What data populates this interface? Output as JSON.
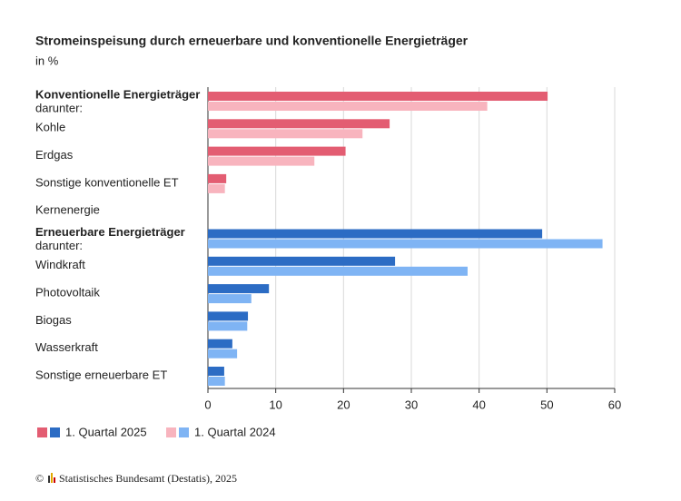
{
  "chart_data": {
    "type": "hbar",
    "title": "Stromeinspeisung durch erneuerbare und konventionelle Energieträger",
    "subtitle": "in %",
    "categories": [
      "Konventionelle Energieträger",
      "Kohle",
      "Erdgas",
      "Sonstige konventionelle ET",
      "Kernenergie",
      "Erneuerbare Energieträger",
      "Windkraft",
      "Photovoltaik",
      "Biogas",
      "Wasserkraft",
      "Sonstige erneuerbare ET"
    ],
    "category_notes": [
      "darunter:",
      null,
      null,
      null,
      null,
      "darunter:",
      null,
      null,
      null,
      null,
      null
    ],
    "category_bold": [
      true,
      false,
      false,
      false,
      false,
      true,
      false,
      false,
      false,
      false,
      false
    ],
    "category_palette": [
      0,
      0,
      0,
      0,
      0,
      1,
      1,
      1,
      1,
      1,
      1
    ],
    "series": [
      {
        "name": "1. Quartal 2025",
        "colors": [
          "#e35d72",
          "#2c6cc4"
        ],
        "values": [
          50.1,
          26.8,
          20.3,
          2.7,
          0,
          49.3,
          27.6,
          9.0,
          5.9,
          3.6,
          2.4
        ]
      },
      {
        "name": "1. Quartal 2024",
        "colors": [
          "#f8b4be",
          "#7fb4f4"
        ],
        "values": [
          41.2,
          22.8,
          15.7,
          2.5,
          0,
          58.2,
          38.3,
          6.4,
          5.8,
          4.3,
          2.5
        ]
      }
    ],
    "xlim": [
      0,
      60
    ],
    "xticks": [
      0,
      10,
      20,
      30,
      40,
      50,
      60
    ],
    "grid": true,
    "source": "Statistisches Bundesamt (Destatis), 2025"
  }
}
